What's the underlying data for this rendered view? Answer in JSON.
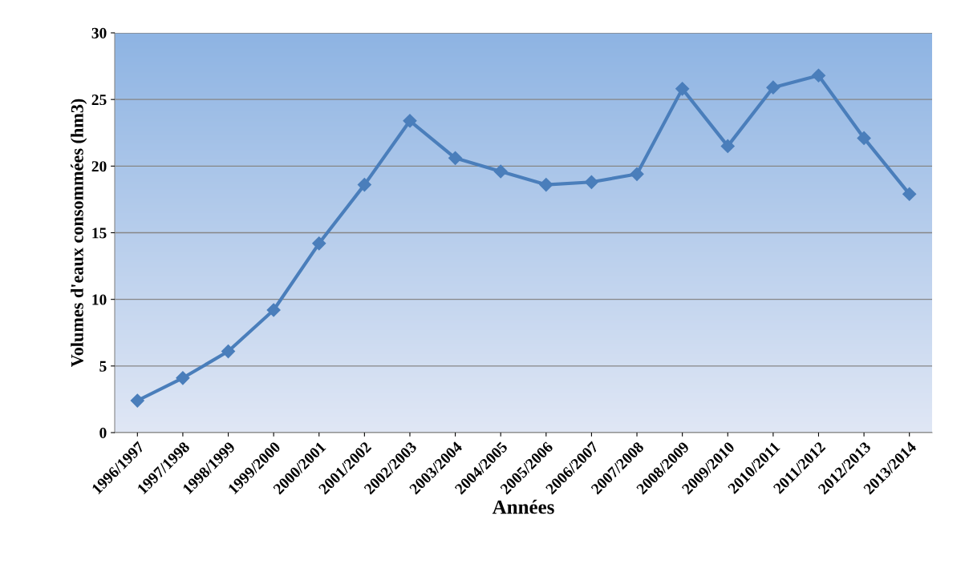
{
  "chart_data": {
    "type": "line",
    "xlabel": "Années",
    "ylabel": "Volumes d'eaux consommées (hm3)",
    "categories": [
      "1996/1997",
      "1997/1998",
      "1998/1999",
      "1999/2000",
      "2000/2001",
      "2001/2002",
      "2002/2003",
      "2003/2004",
      "2004/2005",
      "2005/2006",
      "2006/2007",
      "2007/2008",
      "2008/2009",
      "2009/2010",
      "2010/2011",
      "2011/2012",
      "2012/2013",
      "2013/2014"
    ],
    "series": [
      {
        "color": "#4a7ebb",
        "values": [
          2.4,
          4.1,
          6.1,
          9.2,
          14.2,
          18.6,
          23.4,
          20.6,
          19.6,
          18.6,
          18.8,
          19.4,
          25.8,
          21.5,
          25.9,
          26.8,
          22.1,
          17.9
        ]
      }
    ],
    "ylim": [
      0,
      30
    ],
    "yticks": [
      0,
      5,
      10,
      15,
      20,
      25,
      30
    ],
    "grid": "y",
    "marker": "diamond",
    "line_style": "solid",
    "legend": false
  }
}
